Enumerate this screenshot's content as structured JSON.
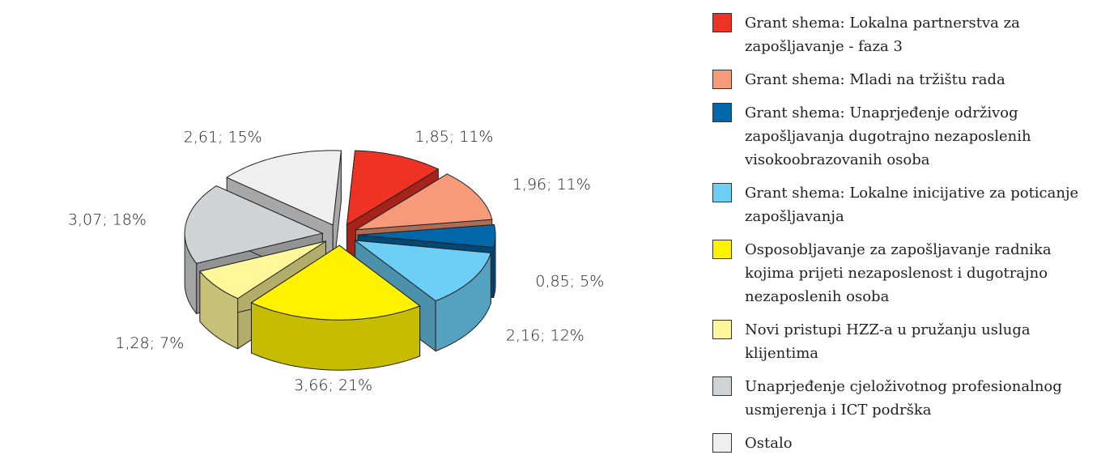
{
  "chart_data": {
    "type": "pie3d",
    "categories": [
      "Grant shema: Lokalna partnerstva za zapošljavanje - faza 3",
      "Grant shema: Mladi na tržištu rada",
      "Grant shema: Unaprjeđenje održivog zapošljavanja dugotrajno nezaposlenih visokoobrazovanih osoba",
      "Grant shema: Lokalne inicijative za poticanje zapošljavanja",
      "Osposobljavanje za zapošljavanje radnika kojima prijeti nezaposlenost i dugotrajno nezaposlenih osoba",
      "Novi pristupi HZZ-a u pružanju usluga klijentima",
      "Unaprjeđenje cjeloživotnog profesionalnog usmjerenja i ICT podrška",
      "Ostalo"
    ],
    "values": [
      1.85,
      1.96,
      0.85,
      2.16,
      3.66,
      1.28,
      3.07,
      2.61
    ],
    "value_labels": [
      "1,85; 11%",
      "1,96; 11%",
      "0,85; 5%",
      "2,16; 12%",
      "3,66; 21%",
      "1,28; 7%",
      "3,07; 18%",
      "2,61; 15%"
    ],
    "colors": [
      "#ee3224",
      "#f79a7a",
      "#0068a8",
      "#6dcff6",
      "#fff200",
      "#fff799",
      "#d1d3d4",
      "#efeff0"
    ],
    "legend": "right"
  }
}
